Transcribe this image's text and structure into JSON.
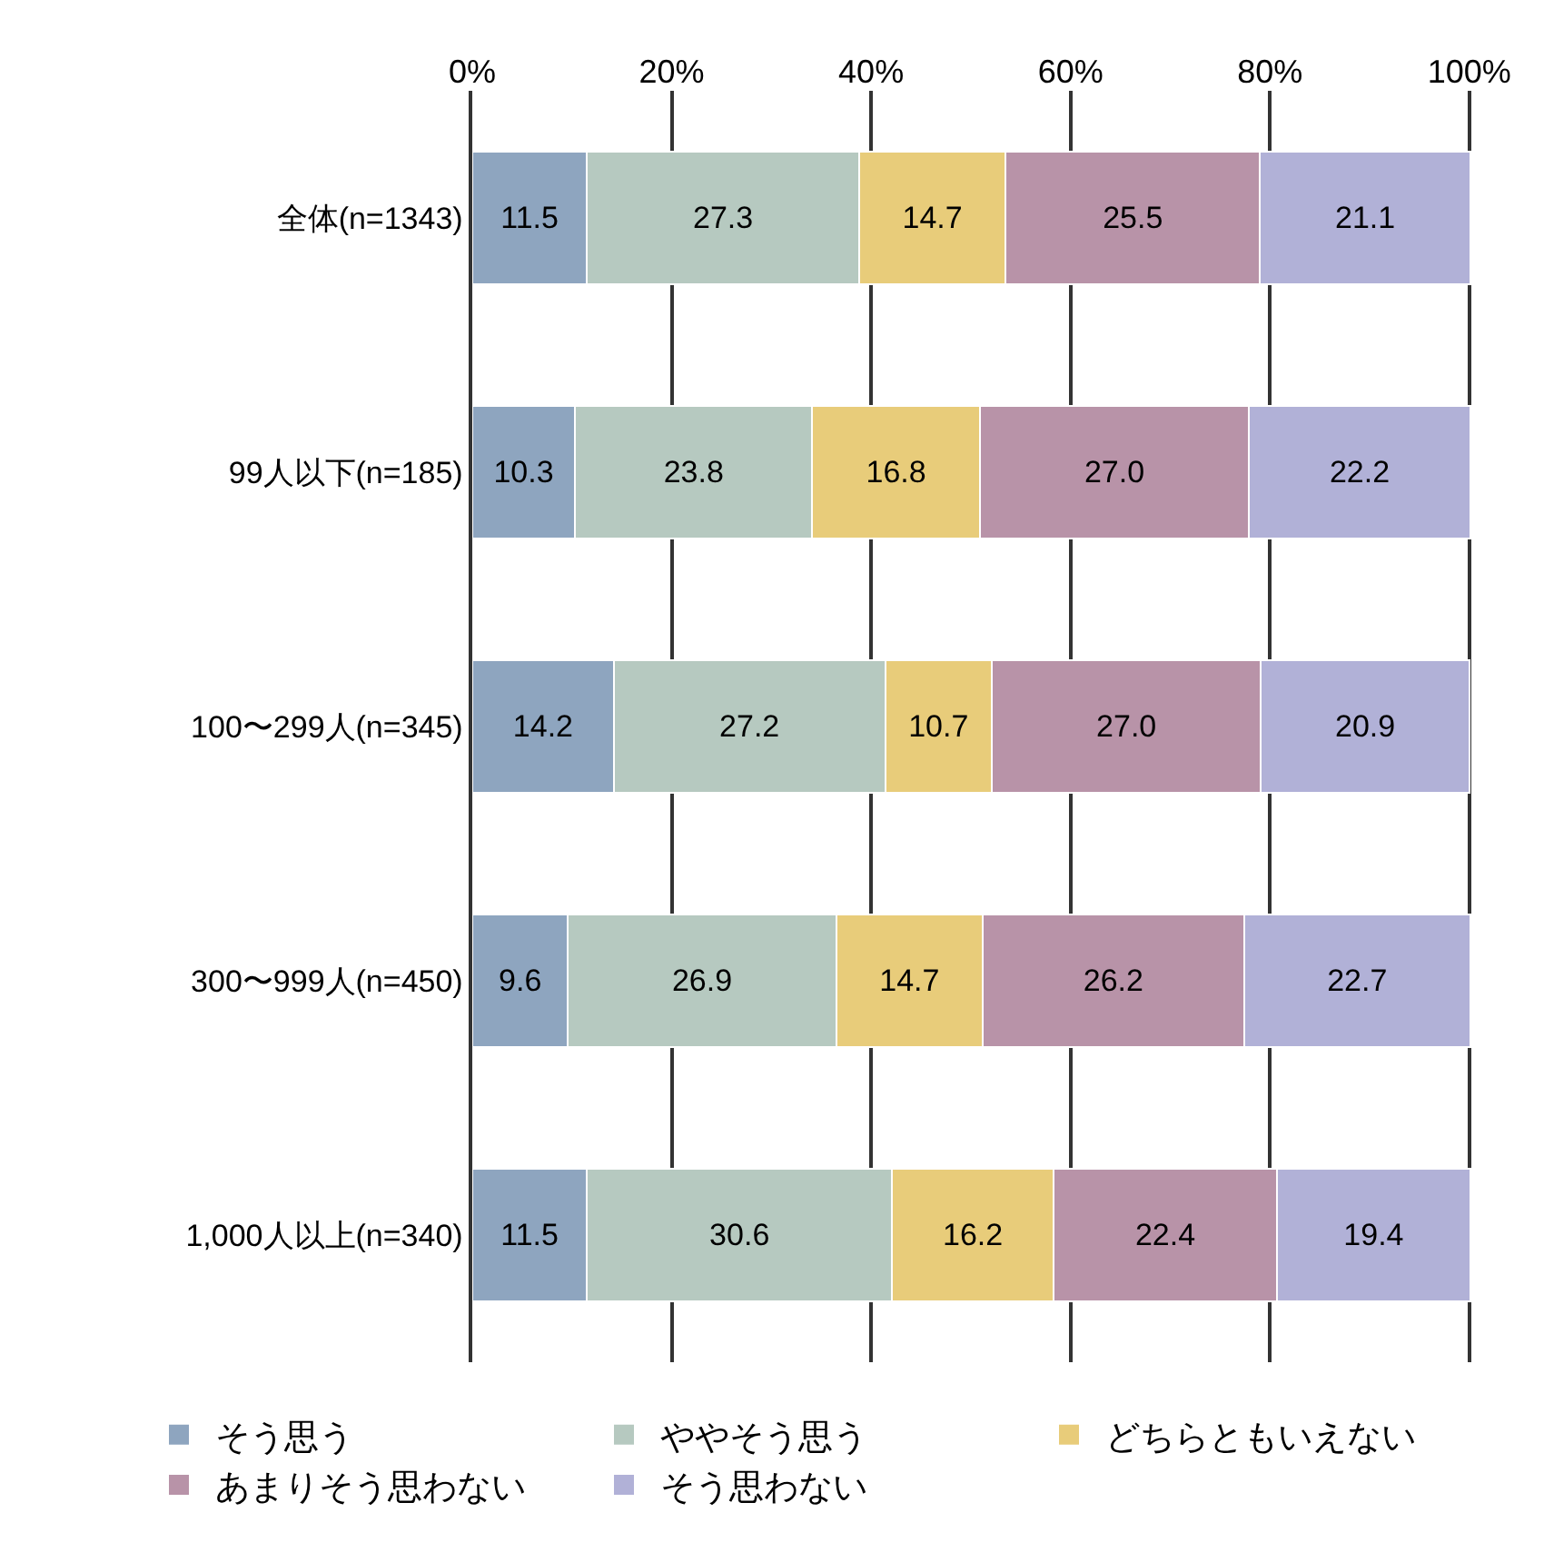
{
  "chart_data": {
    "type": "bar",
    "orientation": "horizontal",
    "stacked": true,
    "grid": "x",
    "legend": "bottom",
    "categories": [
      "全体(n=1343)",
      "99人以下(n=185)",
      "100〜299人(n=345)",
      "300〜999人(n=450)",
      "1,000人以上(n=340)"
    ],
    "series": [
      {
        "name": "そう思う",
        "color": "#8ea5bf",
        "values": [
          11.5,
          10.3,
          14.2,
          9.6,
          11.5
        ],
        "value_labels": [
          "11.5",
          "10.3",
          "14.2",
          "9.6",
          "11.5"
        ]
      },
      {
        "name": "ややそう思う",
        "color": "#b6c9c0",
        "values": [
          27.3,
          23.8,
          27.2,
          26.9,
          30.6
        ],
        "value_labels": [
          "27.3",
          "23.8",
          "27.2",
          "26.9",
          "30.6"
        ]
      },
      {
        "name": "どちらともいえない",
        "color": "#e8cc7a",
        "values": [
          14.7,
          16.8,
          10.7,
          14.7,
          16.2
        ],
        "value_labels": [
          "14.7",
          "16.8",
          "10.7",
          "14.7",
          "16.2"
        ]
      },
      {
        "name": "あまりそう思わない",
        "color": "#b893a8",
        "values": [
          25.5,
          27.0,
          27.0,
          26.2,
          22.4
        ],
        "value_labels": [
          "25.5",
          "27.0",
          "27.0",
          "26.2",
          "22.4"
        ]
      },
      {
        "name": "そう思わない",
        "color": "#b1b1d7",
        "values": [
          21.1,
          22.2,
          20.9,
          22.7,
          19.4
        ],
        "value_labels": [
          "21.1",
          "22.2",
          "20.9",
          "22.7",
          "19.4"
        ]
      }
    ],
    "xlim": [
      0,
      100.2
    ],
    "xticks": [
      {
        "value": 0,
        "label": "0%"
      },
      {
        "value": 20,
        "label": "20%"
      },
      {
        "value": 40,
        "label": "40%"
      },
      {
        "value": 60,
        "label": "60%"
      },
      {
        "value": 80,
        "label": "80%"
      },
      {
        "value": 100,
        "label": "100%"
      }
    ]
  }
}
